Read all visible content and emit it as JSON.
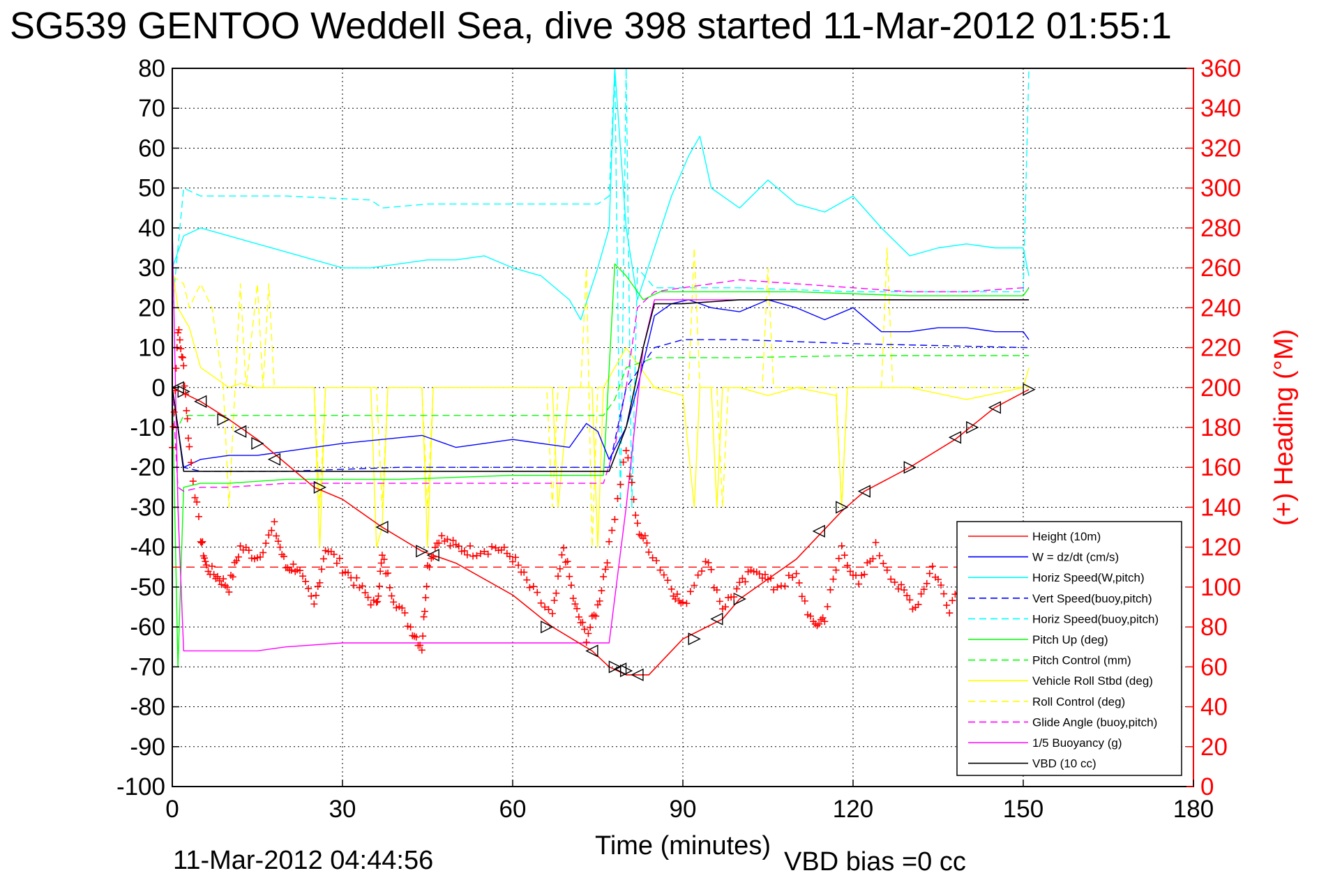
{
  "chart_data": {
    "type": "line",
    "title": "SG539 GENTOO Weddell Sea, dive 398 started 11-Mar-2012 01:55:1",
    "xlabel": "Time (minutes)",
    "ylabel_right": "(+) Heading (°M)",
    "xlim": [
      0,
      180
    ],
    "ylim_left": [
      -100,
      80
    ],
    "ylim_right": [
      0,
      360
    ],
    "x_ticks": [
      "0",
      "30",
      "60",
      "90",
      "120",
      "150",
      "180"
    ],
    "y_left_ticks": [
      "80",
      "70",
      "60",
      "50",
      "40",
      "30",
      "20",
      "10",
      "0",
      "-10",
      "-20",
      "-30",
      "-40",
      "-50",
      "-60",
      "-70",
      "-80",
      "-90",
      "-100"
    ],
    "y_right_ticks": [
      "360",
      "340",
      "320",
      "300",
      "280",
      "260",
      "240",
      "220",
      "200",
      "180",
      "160",
      "140",
      "120",
      "100",
      "80",
      "60",
      "40",
      "20",
      "0"
    ],
    "grid": true,
    "legend_position": "bottom-right",
    "footer_date": "11-Mar-2012 04:44:56",
    "footer_bias": "VBD bias =0 cc",
    "colors": {
      "height": "#ff0000",
      "w": "#0000ff",
      "hspeed": "#00ffff",
      "pitch": "#00ff00",
      "roll": "#ffff00",
      "glide": "#ff00ff",
      "buoy": "#ff00ff",
      "vbd": "#000000",
      "heading": "#ff0000",
      "right_axis": "#ff0000"
    },
    "legend": [
      {
        "label": "Height (10m)",
        "color": "#ff0000",
        "dash": false
      },
      {
        "label": "W = dz/dt (cm/s)",
        "color": "#0000ff",
        "dash": false
      },
      {
        "label": "Horiz Speed(W,pitch)",
        "color": "#00ffff",
        "dash": false
      },
      {
        "label": "Vert Speed(buoy,pitch)",
        "color": "#0000ff",
        "dash": true
      },
      {
        "label": "Horiz Speed(buoy,pitch)",
        "color": "#00ffff",
        "dash": true
      },
      {
        "label": "Pitch Up (deg)",
        "color": "#00ff00",
        "dash": false
      },
      {
        "label": "Pitch Control (mm)",
        "color": "#00ff00",
        "dash": true
      },
      {
        "label": "Vehicle Roll Stbd (deg)",
        "color": "#ffff00",
        "dash": false
      },
      {
        "label": "Roll Control (deg)",
        "color": "#ffff00",
        "dash": true
      },
      {
        "label": "Glide Angle (buoy,pitch)",
        "color": "#ff00ff",
        "dash": true
      },
      {
        "label": "1/5 Buoyancy (g)",
        "color": "#ff00ff",
        "dash": false
      },
      {
        "label": "VBD (10 cc)",
        "color": "#000000",
        "dash": false
      }
    ],
    "series": [
      {
        "name": "Height (10m)",
        "key": "height",
        "dash": false,
        "x": [
          0,
          5,
          10,
          15,
          20,
          25,
          30,
          37,
          44,
          50,
          60,
          67,
          74,
          77,
          80,
          84,
          90,
          97,
          100,
          110,
          118,
          122,
          130,
          138,
          145,
          151
        ],
        "y": [
          0,
          -3.5,
          -8,
          -13,
          -19,
          -25,
          -28,
          -35,
          -41,
          -44,
          -52,
          -60,
          -66,
          -70,
          -72,
          -72,
          -63,
          -58,
          -53,
          -43,
          -31,
          -26,
          -20,
          -13,
          -5,
          -0.5
        ]
      },
      {
        "name": "Height markers",
        "key": "markers",
        "dash": false,
        "x": [
          1,
          2,
          5,
          9,
          12,
          15,
          18,
          26,
          37,
          44,
          46,
          66,
          74,
          78,
          79,
          80,
          82,
          92,
          96,
          100,
          114,
          118,
          122,
          130,
          138,
          141,
          145,
          151
        ],
        "y": [
          0,
          -1,
          -3.5,
          -8,
          -11,
          -14,
          -18,
          -25,
          -35,
          -41,
          -42,
          -60,
          -66,
          -70,
          -70.5,
          -71,
          -72,
          -63,
          -58,
          -53,
          -36,
          -30,
          -26,
          -20,
          -12.5,
          -10,
          -5,
          -0.5
        ]
      },
      {
        "name": "W = dz/dt (cm/s)",
        "key": "w",
        "dash": false,
        "x": [
          0,
          1,
          2,
          5,
          10,
          15,
          20,
          25,
          30,
          37,
          44,
          50,
          60,
          70,
          73,
          75,
          77,
          80,
          82,
          85,
          88,
          91,
          95,
          100,
          105,
          110,
          115,
          120,
          125,
          130,
          135,
          140,
          145,
          150,
          151
        ],
        "y": [
          0,
          -10,
          -20,
          -18,
          -17,
          -17,
          -16,
          -15,
          -14,
          -13,
          -12,
          -15,
          -13,
          -15,
          -9,
          -11,
          -18,
          -10,
          0,
          18,
          21,
          22,
          20,
          19,
          22,
          20,
          17,
          20,
          14,
          14,
          15,
          15,
          14,
          14,
          12
        ]
      },
      {
        "name": "Vert Speed(buoy,pitch)",
        "key": "vspeed",
        "dash": false,
        "x": [
          0,
          2,
          5,
          20,
          40,
          60,
          77,
          80,
          85,
          90,
          100,
          120,
          151
        ],
        "y": [
          0,
          -20,
          -21,
          -21,
          -20,
          -20,
          -20,
          0,
          10,
          12,
          12,
          11,
          10
        ]
      },
      {
        "name": "Horiz Speed(W,pitch)",
        "key": "hspeed",
        "dash": false,
        "x": [
          0,
          2,
          5,
          10,
          15,
          20,
          25,
          30,
          35,
          40,
          45,
          50,
          55,
          60,
          65,
          70,
          72,
          75,
          77,
          78,
          80,
          82,
          85,
          88,
          91,
          93,
          95,
          100,
          105,
          110,
          115,
          120,
          125,
          130,
          135,
          140,
          145,
          150,
          151
        ],
        "y": [
          30,
          38,
          40,
          38,
          36,
          34,
          32,
          30,
          30,
          31,
          32,
          32,
          33,
          30,
          28,
          22,
          17,
          30,
          40,
          80,
          40,
          22,
          35,
          48,
          58,
          63,
          50,
          45,
          52,
          46,
          44,
          48,
          40,
          33,
          35,
          36,
          35,
          35,
          28
        ]
      },
      {
        "name": "Horiz Speed(buoy,pitch)",
        "key": "hspeedb",
        "dash": false,
        "x": [
          0,
          2,
          5,
          20,
          35,
          37,
          45,
          60,
          75,
          77,
          78,
          79,
          80,
          81,
          82,
          85,
          100,
          120,
          150,
          151
        ],
        "y": [
          20,
          50,
          48,
          48,
          47,
          45,
          46,
          46,
          46,
          48,
          80,
          -30,
          80,
          -30,
          30,
          25,
          25,
          24,
          24,
          80
        ]
      },
      {
        "name": "Pitch Up (deg)",
        "key": "pitch",
        "dash": false,
        "x": [
          0,
          1,
          2,
          5,
          10,
          20,
          40,
          60,
          76,
          78,
          80,
          83,
          86,
          95,
          110,
          130,
          150,
          151
        ],
        "y": [
          0,
          -70,
          -25,
          -24,
          -24,
          -23,
          -23,
          -22,
          -22,
          31,
          28,
          22,
          24,
          24,
          24,
          23,
          23,
          25
        ]
      },
      {
        "name": "Pitch Control (mm)",
        "key": "pitchc",
        "dash": false,
        "x": [
          0,
          1,
          2,
          10,
          40,
          60,
          76,
          78,
          80,
          85,
          100,
          120,
          150,
          151
        ],
        "y": [
          0,
          -10,
          -7,
          -7,
          -7,
          -7,
          -7,
          -3,
          5,
          7.5,
          7.5,
          8,
          8,
          8
        ]
      },
      {
        "name": "Vehicle Roll Stbd (deg)",
        "key": "roll",
        "dash": false,
        "x": [
          0,
          1,
          3,
          5,
          8,
          10,
          12,
          15,
          20,
          25,
          26,
          27,
          30,
          35,
          36,
          37,
          38,
          40,
          44,
          45,
          46,
          50,
          60,
          67,
          68,
          70,
          74,
          75,
          76,
          80,
          85,
          90,
          92,
          93,
          95,
          96,
          97,
          100,
          105,
          110,
          117,
          118,
          119,
          120,
          130,
          140,
          150,
          151
        ],
        "y": [
          30,
          20,
          15,
          5,
          2,
          0,
          1,
          0,
          0,
          0,
          -40,
          0,
          0,
          0,
          -40,
          -35,
          0,
          0,
          0,
          -40,
          0,
          0,
          0,
          0,
          -30,
          0,
          0,
          -40,
          0,
          10,
          0,
          -2,
          -30,
          0,
          0,
          -30,
          0,
          0,
          -2,
          0,
          -2,
          -30,
          0,
          0,
          0,
          -3,
          0,
          5
        ]
      },
      {
        "name": "Roll Control (deg)",
        "key": "rollc",
        "dash": false,
        "x": [
          0,
          2,
          3,
          5,
          7,
          9,
          10,
          12,
          13,
          15,
          16,
          17,
          18,
          19,
          20,
          25,
          26,
          27,
          30,
          36,
          37,
          38,
          40,
          44,
          45,
          46,
          60,
          66,
          67,
          68,
          72,
          73,
          74,
          75,
          80,
          91,
          92,
          93,
          96,
          97,
          98,
          104,
          105,
          106,
          117,
          118,
          119,
          125,
          126,
          127,
          150,
          151
        ],
        "y": [
          28,
          26,
          20,
          26,
          20,
          0,
          -30,
          26,
          0,
          26,
          0,
          26,
          0,
          0,
          0,
          0,
          -30,
          0,
          0,
          0,
          -30,
          0,
          0,
          0,
          -30,
          0,
          0,
          0,
          -30,
          0,
          0,
          30,
          -40,
          0,
          0,
          0,
          35,
          0,
          0,
          -30,
          0,
          0,
          30,
          0,
          0,
          -30,
          0,
          0,
          35,
          0,
          0,
          0
        ]
      },
      {
        "name": "Glide Angle (buoy,pitch)",
        "key": "glide",
        "dash": false,
        "x": [
          0,
          1,
          2,
          5,
          10,
          20,
          40,
          60,
          76,
          78,
          80,
          82,
          85,
          90,
          100,
          110,
          120,
          130,
          140,
          150,
          151
        ],
        "y": [
          0,
          -25,
          -26,
          -25,
          -25,
          -24,
          -24,
          -24,
          -24,
          -15,
          0,
          20,
          24,
          25,
          27,
          26,
          25,
          24,
          24,
          25,
          25
        ]
      },
      {
        "name": "1/5 Buoyancy (g)",
        "key": "buoy",
        "dash": false,
        "x": [
          0,
          1,
          2,
          10,
          15,
          20,
          30,
          40,
          50,
          60,
          70,
          77,
          80,
          83,
          85,
          90,
          100,
          120,
          150,
          151
        ],
        "y": [
          40,
          -30,
          -66,
          -66,
          -66,
          -65,
          -64,
          -64,
          -64,
          -64,
          -64,
          -64,
          -30,
          10,
          22,
          22,
          22,
          22,
          22,
          22
        ]
      },
      {
        "name": "VBD (10 cc)",
        "key": "vbd",
        "dash": false,
        "x": [
          0,
          1,
          2,
          10,
          20,
          30,
          40,
          60,
          77,
          80,
          83,
          85,
          90,
          100,
          120,
          150,
          151
        ],
        "y": [
          0,
          -10,
          -21,
          -21,
          -21,
          -21,
          -21,
          -21,
          -21,
          -10,
          10,
          21,
          21,
          22,
          22,
          22,
          22
        ]
      },
      {
        "name": "Heading",
        "key": "heading",
        "dash": false,
        "axis": "right",
        "x": [
          0,
          1,
          2,
          3,
          5,
          6,
          8,
          10,
          12,
          15,
          18,
          20,
          22,
          25,
          27,
          30,
          33,
          36,
          37,
          39,
          42,
          44,
          45,
          47,
          50,
          53,
          57,
          60,
          63,
          67,
          69,
          71,
          73,
          75,
          77,
          80,
          82,
          84,
          88,
          90,
          94,
          97,
          100,
          103,
          106,
          110,
          113,
          115,
          118,
          121,
          124,
          128,
          131,
          134,
          137,
          140,
          143,
          147,
          150
        ],
        "y": [
          170,
          230,
          210,
          170,
          125,
          110,
          105,
          100,
          120,
          115,
          130,
          110,
          110,
          90,
          120,
          110,
          100,
          90,
          115,
          95,
          80,
          70,
          110,
          125,
          120,
          118,
          120,
          115,
          100,
          85,
          120,
          90,
          75,
          90,
          120,
          170,
          130,
          120,
          100,
          90,
          115,
          90,
          100,
          110,
          100,
          105,
          80,
          85,
          120,
          100,
          120,
          100,
          90,
          110,
          90,
          110,
          90,
          100,
          100
        ]
      },
      {
        "name": "Heading reference",
        "key": "headref",
        "dash": true,
        "axis": "right",
        "x": [
          0,
          151
        ],
        "y": [
          110,
          110
        ]
      }
    ]
  }
}
